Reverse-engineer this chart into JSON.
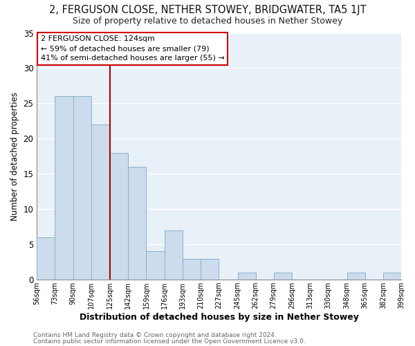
{
  "title": "2, FERGUSON CLOSE, NETHER STOWEY, BRIDGWATER, TA5 1JT",
  "subtitle": "Size of property relative to detached houses in Nether Stowey",
  "xlabel": "Distribution of detached houses by size in Nether Stowey",
  "ylabel": "Number of detached properties",
  "bin_edges": [
    56,
    73,
    90,
    107,
    125,
    142,
    159,
    176,
    193,
    210,
    227,
    245,
    262,
    279,
    296,
    313,
    330,
    348,
    365,
    382,
    399
  ],
  "bar_heights": [
    6,
    26,
    26,
    22,
    18,
    16,
    4,
    7,
    3,
    3,
    0,
    1,
    0,
    1,
    0,
    0,
    0,
    1,
    0,
    1
  ],
  "bar_color": "#ccdcec",
  "bar_edgecolor": "#8ab0cc",
  "vline_x": 125,
  "vline_color": "#aa0000",
  "ylim": [
    0,
    35
  ],
  "yticks": [
    0,
    5,
    10,
    15,
    20,
    25,
    30,
    35
  ],
  "annotation_title": "2 FERGUSON CLOSE: 124sqm",
  "annotation_line1": "← 59% of detached houses are smaller (79)",
  "annotation_line2": "41% of semi-detached houses are larger (55) →",
  "annotation_box_facecolor": "#ffffff",
  "annotation_box_edgecolor": "#cc0000",
  "footer_line1": "Contains HM Land Registry data © Crown copyright and database right 2024.",
  "footer_line2": "Contains public sector information licensed under the Open Government Licence v3.0.",
  "background_color": "#ffffff",
  "plot_bg_color": "#e8f0f8",
  "grid_color": "#ffffff"
}
